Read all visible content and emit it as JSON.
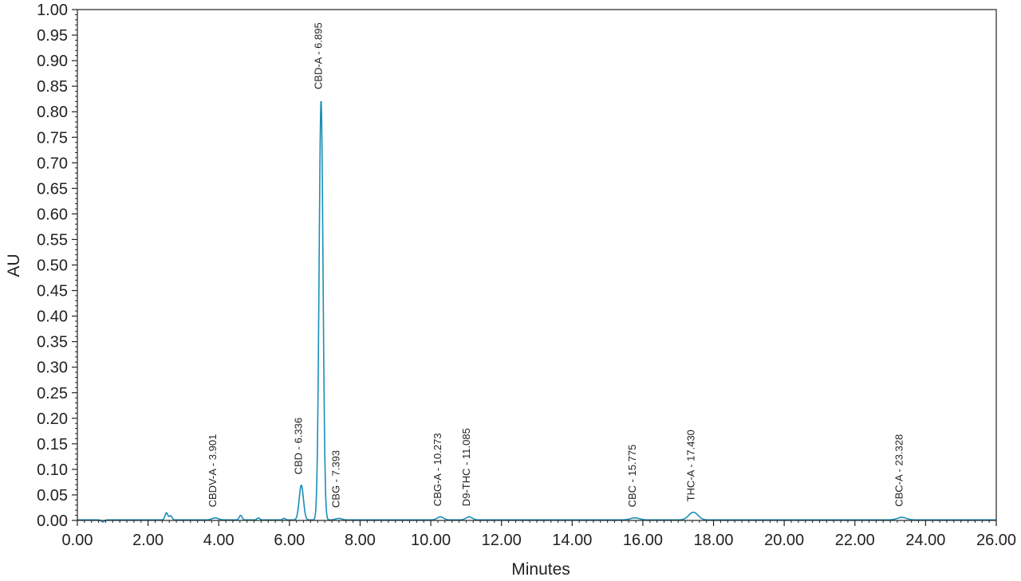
{
  "chart_data": {
    "type": "line",
    "xlabel": "Minutes",
    "ylabel": "AU",
    "xlim": [
      0,
      26
    ],
    "ylim": [
      0,
      1
    ],
    "x_ticks": [
      "0.00",
      "2.00",
      "4.00",
      "6.00",
      "8.00",
      "10.00",
      "12.00",
      "14.00",
      "16.00",
      "18.00",
      "20.00",
      "22.00",
      "24.00",
      "26.00"
    ],
    "y_ticks": [
      "0.00",
      "0.05",
      "0.10",
      "0.15",
      "0.20",
      "0.25",
      "0.30",
      "0.35",
      "0.40",
      "0.45",
      "0.50",
      "0.55",
      "0.60",
      "0.65",
      "0.70",
      "0.75",
      "0.80",
      "0.85",
      "0.90",
      "0.95",
      "1.00"
    ],
    "grid": false,
    "line_color": "#1a8fb8",
    "peaks": [
      {
        "label": "CBDV-A - 3.901",
        "x": 3.901,
        "y": 0.004
      },
      {
        "label": "CBD - 6.336",
        "x": 6.336,
        "y": 0.068
      },
      {
        "label": "CBD-A - 6.895",
        "x": 6.895,
        "y": 0.822
      },
      {
        "label": "CBG - 7.393",
        "x": 7.393,
        "y": 0.003
      },
      {
        "label": "CBG-A - 10.273",
        "x": 10.273,
        "y": 0.006
      },
      {
        "label": "D9-THC - 11.085",
        "x": 11.085,
        "y": 0.006
      },
      {
        "label": "CBC - 15.775",
        "x": 15.775,
        "y": 0.004
      },
      {
        "label": "THC-A - 17.430",
        "x": 17.43,
        "y": 0.015
      },
      {
        "label": "CBC-A - 23.328",
        "x": 23.328,
        "y": 0.005
      }
    ],
    "minor_peaks": [
      {
        "x": 0.72,
        "y": -0.004
      },
      {
        "x": 2.52,
        "y": 0.014
      },
      {
        "x": 2.64,
        "y": 0.008
      },
      {
        "x": 4.62,
        "y": 0.009
      },
      {
        "x": 5.12,
        "y": 0.004
      },
      {
        "x": 5.85,
        "y": 0.003
      }
    ]
  }
}
